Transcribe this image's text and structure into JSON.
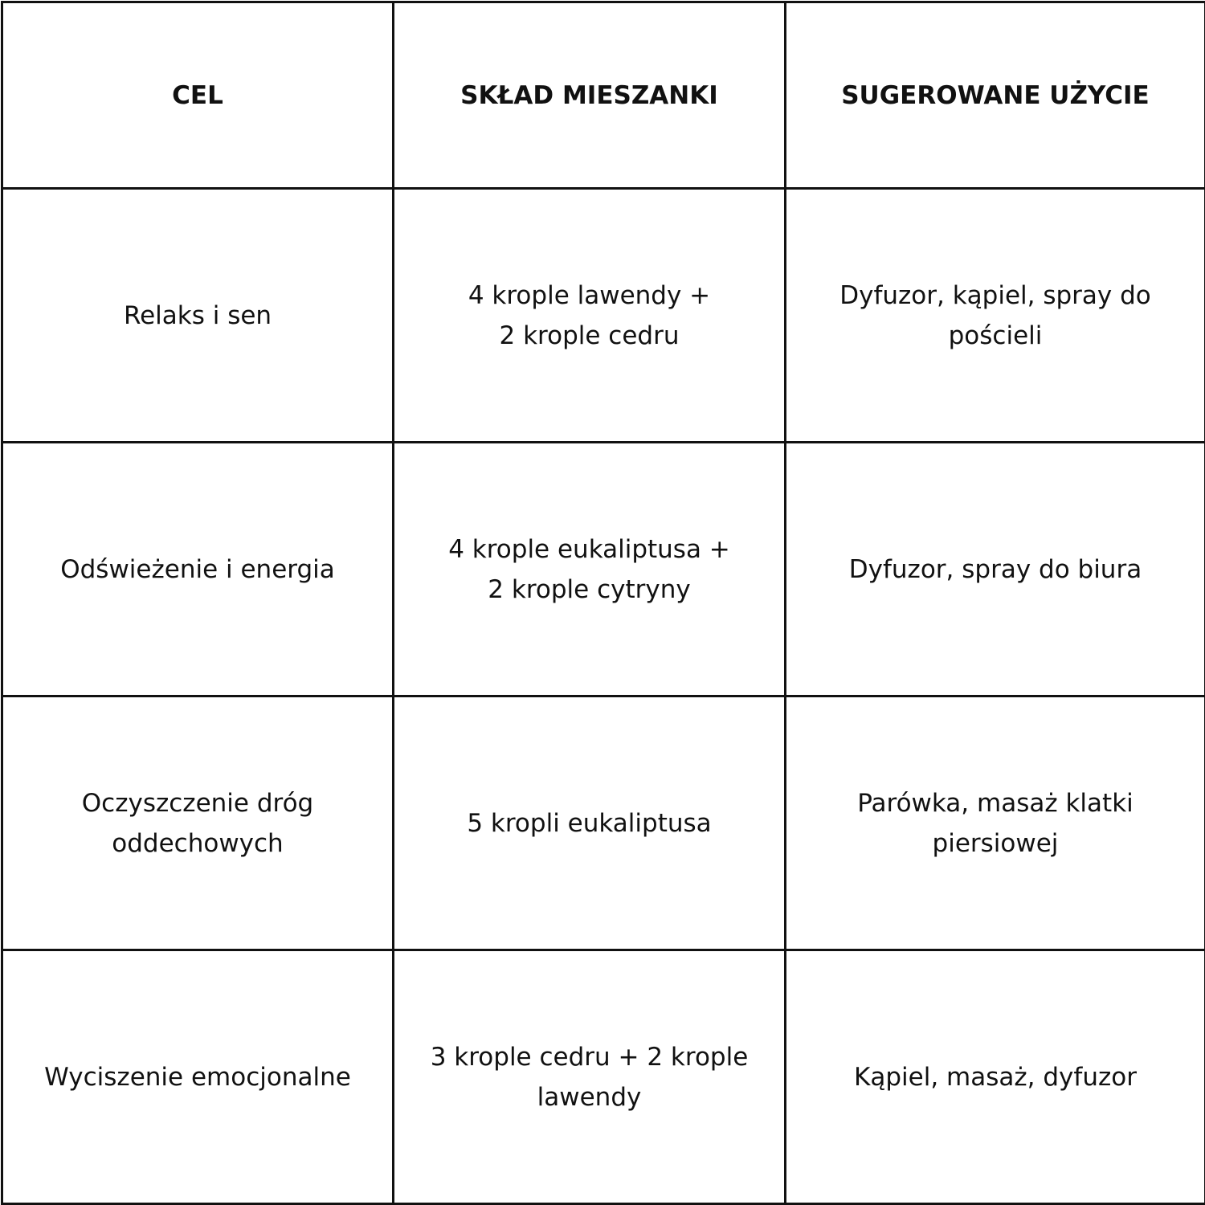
{
  "table": {
    "headers": [
      "CEL",
      "SKŁAD MIESZANKI",
      "SUGEROWANE UŻYCIE"
    ],
    "rows": [
      [
        "Relaks i sen",
        "4 krople lawendy +\n2 krople cedru",
        "Dyfuzor, kąpiel, spray do pościeli"
      ],
      [
        "Odświeżenie i energia",
        "4 krople eukaliptusa +\n2 krople cytryny",
        "Dyfuzor, spray do biura"
      ],
      [
        "Oczyszczenie dróg oddechowych",
        "5 kropli eukaliptusa",
        "Parówka, masaż klatki piersiowej"
      ],
      [
        "Wyciszenie emocjonalne",
        "3 krople cedru + 2 krople lawendy",
        "Kąpiel, masaż, dyfuzor"
      ]
    ]
  }
}
